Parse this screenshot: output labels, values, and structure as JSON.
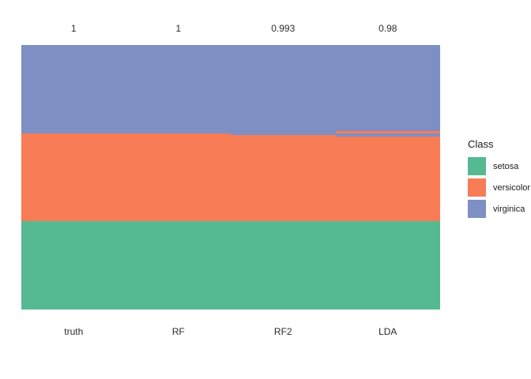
{
  "chart_data": {
    "type": "bar",
    "subtype": "stacked-class-membership",
    "description": "Iris samples (n=150, sorted by true class) colored by class label per column; columns are ground truth and three classifiers",
    "categories": [
      "truth",
      "RF",
      "RF2",
      "LDA"
    ],
    "top_labels": [
      "1",
      "1",
      "0.993",
      "0.98"
    ],
    "accuracies": [
      1,
      1,
      0.993,
      0.98
    ],
    "total_samples_per_column": 150,
    "classes": [
      "setosa",
      "versicolor",
      "virginica"
    ],
    "colors": {
      "setosa": "#55B992",
      "versicolor": "#F87C55",
      "virginica": "#7E8FC3"
    },
    "columns": [
      {
        "label": "truth",
        "accuracy_label": "1",
        "segments": [
          {
            "class": "virginica",
            "count": 50
          },
          {
            "class": "versicolor",
            "count": 50
          },
          {
            "class": "setosa",
            "count": 50
          }
        ]
      },
      {
        "label": "RF",
        "accuracy_label": "1",
        "segments": [
          {
            "class": "virginica",
            "count": 50
          },
          {
            "class": "versicolor",
            "count": 50
          },
          {
            "class": "setosa",
            "count": 50
          }
        ]
      },
      {
        "label": "RF2",
        "accuracy_label": "0.993",
        "segments": [
          {
            "class": "virginica",
            "count": 51
          },
          {
            "class": "versicolor",
            "count": 49
          },
          {
            "class": "setosa",
            "count": 50
          }
        ]
      },
      {
        "label": "LDA",
        "accuracy_label": "0.98",
        "segments": [
          {
            "class": "virginica",
            "count": 49
          },
          {
            "class": "versicolor",
            "count": 1
          },
          {
            "class": "virginica",
            "count": 2
          },
          {
            "class": "versicolor",
            "count": 48
          },
          {
            "class": "setosa",
            "count": 50
          }
        ]
      }
    ],
    "legend_title": "Class",
    "legend_position": "right",
    "grid": false,
    "background": "#ffffff"
  }
}
